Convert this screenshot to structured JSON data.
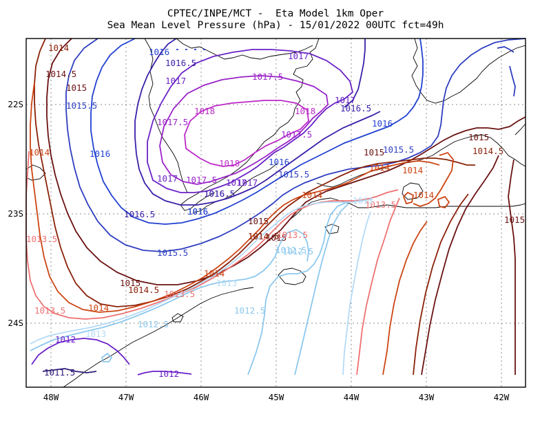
{
  "title": {
    "line1": "CPTEC/INPE/MCT -  Eta Model 1km Oper",
    "line2": "Sea Mean Level Pressure (hPa) - 15/01/2022 00UTC fct=49h"
  },
  "axes": {
    "x_ticks": [
      "48W",
      "47W",
      "46W",
      "45W",
      "44W",
      "43W",
      "42W"
    ],
    "y_ticks": [
      "22S",
      "23S",
      "24S"
    ]
  },
  "colors": {
    "c1011_5": "#2e1a78",
    "c1012": "#6a1fc8",
    "c1012_5": "#8cc8ee",
    "c1013": "#b4daf6",
    "c1013_5": "#ee7070",
    "c1014": "#cc4412",
    "c1014_5": "#8a2008",
    "c1015": "#6a1010",
    "c1015_5": "#2e3ec0",
    "c1016": "#2040d0",
    "c1016_5": "#3a1ea8",
    "c1017": "#6a22c6",
    "c1017_5": "#9a22c8",
    "c1018": "#bc28c8",
    "coast": "#000000",
    "grid": "#8c8c8c"
  },
  "labels": [
    {
      "text": "1014",
      "color": "#8a2008"
    },
    {
      "text": "1014.5",
      "color": "#6a1010"
    },
    {
      "text": "1015",
      "color": "#6a1010"
    },
    {
      "text": "1015.5",
      "color": "#2e3ec0"
    },
    {
      "text": "1016",
      "color": "#2040d0"
    },
    {
      "text": "1016.5",
      "color": "#3a1ea8"
    },
    {
      "text": "1017",
      "color": "#6a22c6"
    },
    {
      "text": "1017.5",
      "color": "#9a22c8"
    },
    {
      "text": "1018",
      "color": "#bc28c8"
    },
    {
      "text": "1018",
      "color": "#bc28c8"
    },
    {
      "text": "1017.5",
      "color": "#9a22c8"
    },
    {
      "text": "1017",
      "color": "#6a22c6"
    },
    {
      "text": "1017.5",
      "color": "#9a22c8"
    },
    {
      "text": "1018",
      "color": "#bc28c8"
    },
    {
      "text": "1017",
      "color": "#6a22c6"
    },
    {
      "text": "1016.5",
      "color": "#3a1ea8"
    },
    {
      "text": "1016",
      "color": "#2040d0"
    },
    {
      "text": "1017",
      "color": "#6a22c6"
    },
    {
      "text": "1017.5",
      "color": "#9a22c8"
    },
    {
      "text": "1017",
      "color": "#6a22c6"
    },
    {
      "text": "1016.5",
      "color": "#3a1ea8"
    },
    {
      "text": "1016",
      "color": "#2040d0"
    },
    {
      "text": "1016",
      "color": "#2040d0"
    },
    {
      "text": "1016.5",
      "color": "#3a1ea8"
    },
    {
      "text": "1016",
      "color": "#2040d0"
    },
    {
      "text": "1017",
      "color": "#6a22c6"
    },
    {
      "text": "1016.5",
      "color": "#3a1ea8"
    },
    {
      "text": "1016",
      "color": "#2040d0"
    },
    {
      "text": "1015.5",
      "color": "#2e3ec0"
    },
    {
      "text": "1015.5",
      "color": "#2e3ec0"
    },
    {
      "text": "1015.5",
      "color": "#2e3ec0"
    },
    {
      "text": "1015",
      "color": "#6a1010"
    },
    {
      "text": "1014.5",
      "color": "#8a2008"
    },
    {
      "text": "1014",
      "color": "#cc4412"
    },
    {
      "text": "1015",
      "color": "#6a1010"
    },
    {
      "text": "1014.5",
      "color": "#8a2008"
    },
    {
      "text": "1014",
      "color": "#cc4412"
    },
    {
      "text": "1013.5",
      "color": "#ee7070"
    },
    {
      "text": "1013",
      "color": "#b4daf6"
    },
    {
      "text": "1012.5",
      "color": "#8cc8ee"
    },
    {
      "text": "1012.5",
      "color": "#8cc8ee"
    },
    {
      "text": "1015",
      "color": "#6a1010"
    },
    {
      "text": "1014.5",
      "color": "#8a2008"
    },
    {
      "text": "1014",
      "color": "#cc4412"
    },
    {
      "text": "1013.5",
      "color": "#ee7070"
    },
    {
      "text": "1013",
      "color": "#b4daf6"
    },
    {
      "text": "1012.5",
      "color": "#8cc8ee"
    },
    {
      "text": "1013.5",
      "color": "#ee7070"
    },
    {
      "text": "1014",
      "color": "#cc4412"
    },
    {
      "text": "1013.5",
      "color": "#ee7070"
    },
    {
      "text": "1013",
      "color": "#b4daf6"
    },
    {
      "text": "1012.5",
      "color": "#8cc8ee"
    },
    {
      "text": "1012",
      "color": "#6a1fc8"
    },
    {
      "text": "1012",
      "color": "#6a1fc8"
    },
    {
      "text": "1011.5",
      "color": "#2e1a78"
    },
    {
      "text": "1014",
      "color": "#cc4412"
    },
    {
      "text": "1014",
      "color": "#cc4412"
    },
    {
      "text": "1015",
      "color": "#6a1010"
    },
    {
      "text": "1014.5",
      "color": "#8a2008"
    },
    {
      "text": "1015",
      "color": "#6a1010"
    },
    {
      "text": "1013.5",
      "color": "#ee7070"
    },
    {
      "text": "1014",
      "color": "#cc4412"
    },
    {
      "text": "1015",
      "color": "#6a1010"
    }
  ]
}
